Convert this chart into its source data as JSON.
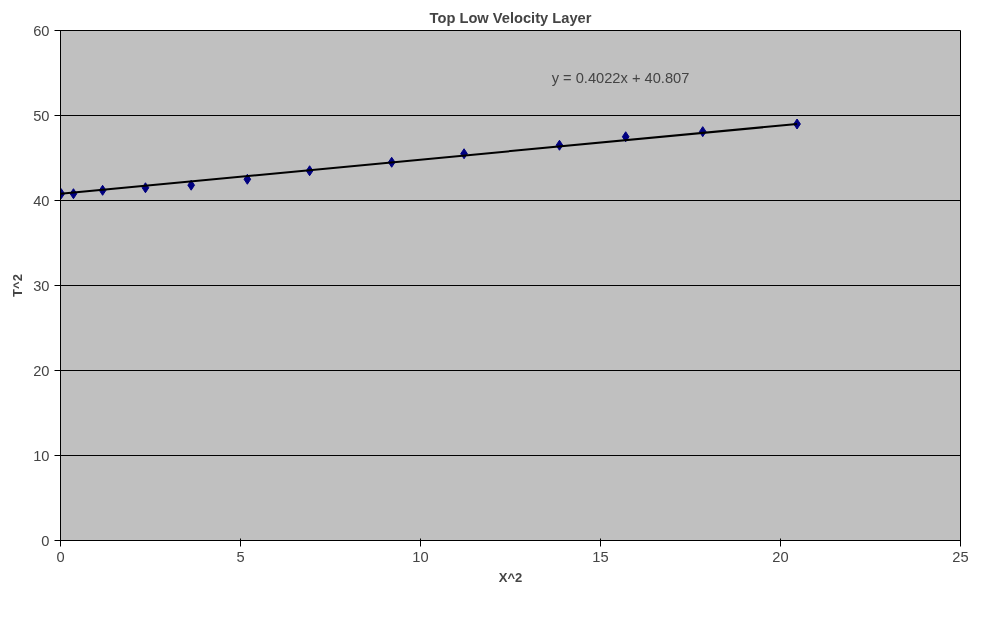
{
  "chart_data": {
    "type": "scatter",
    "title": "Top Low Velocity Layer",
    "xlabel": "X^2",
    "ylabel": "T^2",
    "x": [
      0.02,
      0.36,
      1.17,
      2.36,
      3.63,
      5.19,
      6.92,
      9.2,
      11.21,
      13.86,
      15.7,
      17.84,
      20.46
    ],
    "series": [
      {
        "color": "#000080",
        "values": [
          40.8,
          40.8,
          41.2,
          41.5,
          41.8,
          42.5,
          43.5,
          44.5,
          45.5,
          46.5,
          47.5,
          48.1,
          49.0
        ]
      },
      {
        "type": "line",
        "color": "#000000",
        "x": [
          0,
          20.46
        ],
        "values": [
          40.8,
          49.0
        ],
        "marker": "none"
      }
    ],
    "annotations": [
      "y = 0.4022x + 40.807"
    ],
    "xlim": [
      0,
      25
    ],
    "ylim": [
      0,
      60
    ],
    "xticks": [
      0,
      5,
      10,
      15,
      20,
      25
    ],
    "yticks": [
      0,
      10,
      20,
      30,
      40,
      50,
      60
    ],
    "grid": "y",
    "marker": "diamond",
    "line_style": "solid"
  }
}
